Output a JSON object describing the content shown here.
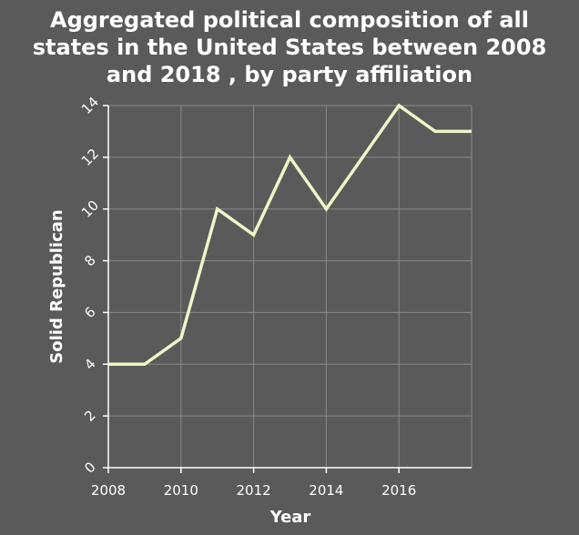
{
  "colors": {
    "background": "#5a5a5a",
    "line": "#eef7c7",
    "grid": "#8a8a8a",
    "text": "#ffffff"
  },
  "chart_data": {
    "type": "line",
    "title_lines": [
      "Aggregated political composition of all",
      "states in the United States between 2008",
      "and 2018 , by party affiliation"
    ],
    "xlabel": "Year",
    "ylabel": "Solid Republican",
    "xlim": [
      2008,
      2018
    ],
    "ylim": [
      0,
      14
    ],
    "xticks": [
      2008,
      2010,
      2012,
      2014,
      2016
    ],
    "yticks": [
      0,
      2,
      4,
      6,
      8,
      10,
      12,
      14
    ],
    "grid": true,
    "series": [
      {
        "x": [
          2008,
          2009,
          2010,
          2011,
          2012,
          2013,
          2014,
          2015,
          2016,
          2017,
          2018
        ],
        "values": [
          4,
          4,
          5,
          10,
          9,
          12,
          10,
          12,
          14,
          13,
          13
        ]
      }
    ]
  }
}
